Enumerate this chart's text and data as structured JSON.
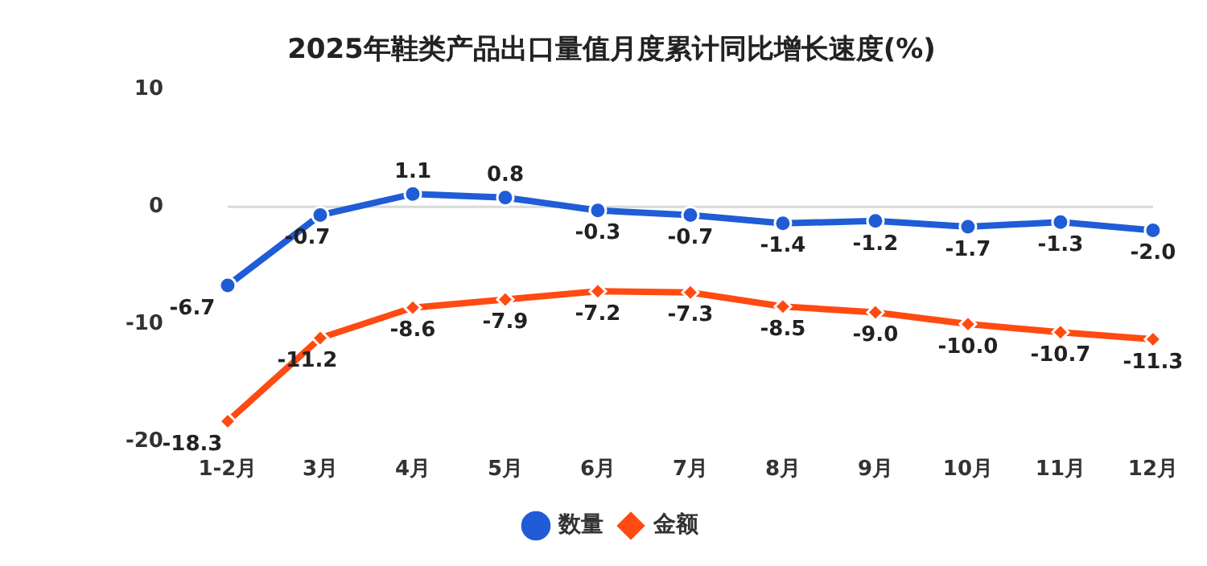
{
  "chart_data": {
    "type": "line",
    "title": "2025年鞋类产品出口量值月度累计同比增长速度(%)",
    "categories": [
      "1-2月",
      "3月",
      "4月",
      "5月",
      "6月",
      "7月",
      "8月",
      "9月",
      "10月",
      "11月",
      "12月"
    ],
    "series": [
      {
        "name": "数量",
        "color": "#1f5cd6",
        "marker": "circle",
        "values": [
          -6.7,
          -0.7,
          1.1,
          0.8,
          -0.3,
          -0.7,
          -1.4,
          -1.2,
          -1.7,
          -1.3,
          -2.0
        ],
        "value_labels": [
          "-6.7",
          "-0.7",
          "1.1",
          "0.8",
          "-0.3",
          "-0.7",
          "-1.4",
          "-1.2",
          "-1.7",
          "-1.3",
          "-2.0"
        ]
      },
      {
        "name": "金额",
        "color": "#ff4a12",
        "marker": "diamond",
        "values": [
          -18.3,
          -11.2,
          -8.6,
          -7.9,
          -7.2,
          -7.3,
          -8.5,
          -9.0,
          -10.0,
          -10.7,
          -11.3
        ],
        "value_labels": [
          "-18.3",
          "-11.2",
          "-8.6",
          "-7.9",
          "-7.2",
          "-7.3",
          "-8.5",
          "-9.0",
          "-10.0",
          "-10.7",
          "-11.3"
        ]
      }
    ],
    "ylim": [
      -20,
      10
    ],
    "yticks": [
      -20,
      -10,
      0,
      10
    ],
    "grid": false,
    "legend": "bottom",
    "line_style": "solid",
    "ref_lines": [
      {
        "axis": "y",
        "value": 0,
        "color": "#d9d9d9"
      }
    ]
  }
}
